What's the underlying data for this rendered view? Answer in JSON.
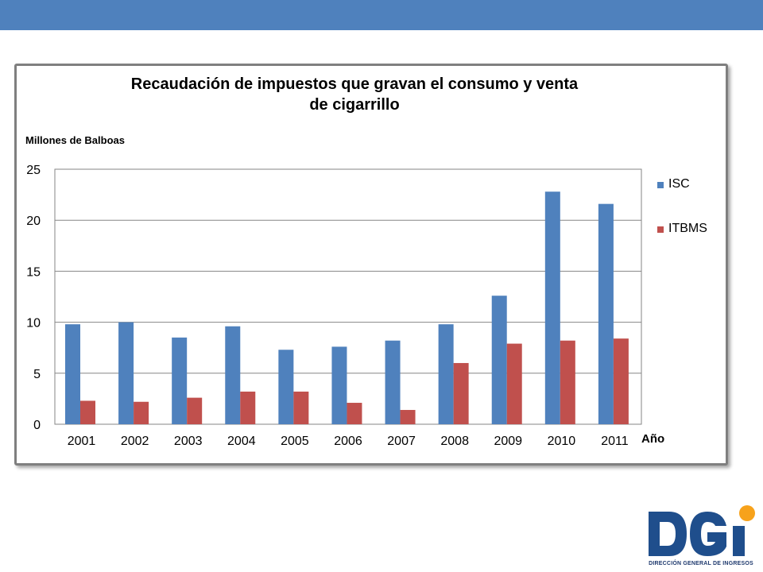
{
  "slide": {
    "logo_text": "DGi",
    "logo_caption": "DIRECCIÓN GENERAL DE INGRESOS"
  },
  "chart_data": {
    "type": "bar",
    "title": "Recaudación de impuestos que gravan  el consumo  y venta de cigarrillo",
    "title_lines": [
      "Recaudación de impuestos que gravan  el consumo  y venta",
      "de cigarrillo"
    ],
    "ylabel": "Millones de Balboas",
    "xlabel": "Año",
    "ylim": [
      0,
      25
    ],
    "yticks": [
      "0",
      "5",
      "10",
      "15",
      "20",
      "25"
    ],
    "grid": true,
    "legend_position": "right",
    "categories": [
      "2001",
      "2002",
      "2003",
      "2004",
      "2005",
      "2006",
      "2007",
      "2008",
      "2009",
      "2010",
      "2011"
    ],
    "series": [
      {
        "name": "ISC",
        "color": "#4f81bd",
        "values": [
          9.8,
          10.0,
          8.5,
          9.6,
          7.3,
          7.6,
          8.2,
          9.8,
          12.6,
          22.8,
          21.6
        ]
      },
      {
        "name": "ITBMS",
        "color": "#c0504d",
        "values": [
          2.3,
          2.2,
          2.6,
          3.2,
          3.2,
          2.1,
          1.4,
          6.0,
          7.9,
          8.2,
          8.4
        ]
      }
    ]
  }
}
